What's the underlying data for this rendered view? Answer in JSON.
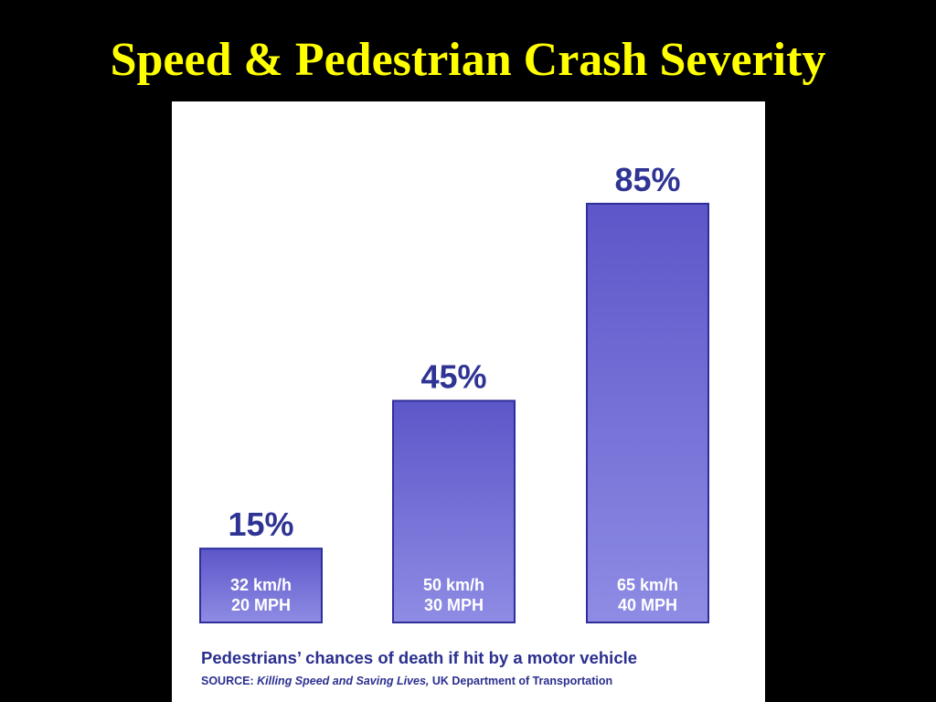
{
  "slide": {
    "title": "Speed & Pedestrian Crash Severity"
  },
  "colors": {
    "background": "#000000",
    "title": "#ffff00",
    "panel": "#ffffff",
    "bar_top": "#5d56c9",
    "bar_bottom": "#8e8ce4",
    "bar_border": "#2e2f9a",
    "value_label": "#2f3494",
    "bar_text": "#ffffff",
    "caption": "#2b2f8f"
  },
  "chart_data": {
    "type": "bar",
    "title": "",
    "xlabel": "",
    "ylabel": "",
    "ylim": [
      0,
      100
    ],
    "grid": false,
    "categories": [
      {
        "line1": "32 km/h",
        "line2": "20 MPH"
      },
      {
        "line1": "50 km/h",
        "line2": "30 MPH"
      },
      {
        "line1": "65 km/h",
        "line2": "40 MPH"
      }
    ],
    "values": [
      15,
      45,
      85
    ],
    "value_labels": [
      "15%",
      "45%",
      "85%"
    ],
    "caption": "Pedestrians’ chances of death if hit by a motor vehicle",
    "source": {
      "prefix": "SOURCE:",
      "title": "Killing Speed and Saving Lives,",
      "org": "UK Department of Transportation"
    }
  }
}
